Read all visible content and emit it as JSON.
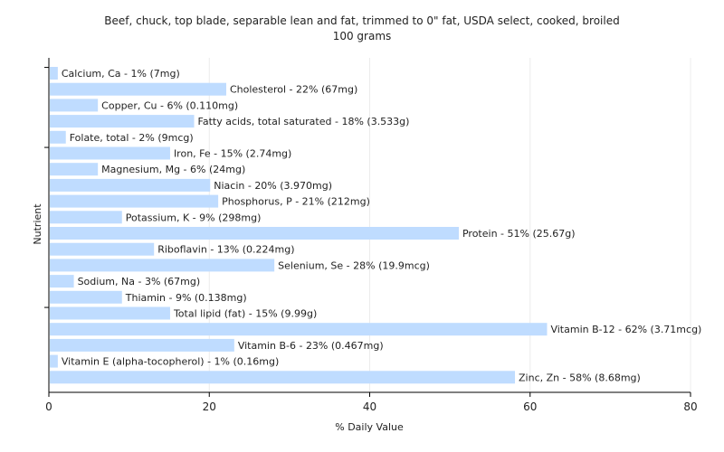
{
  "chart_data": {
    "type": "bar",
    "orientation": "horizontal",
    "title": "Beef, chuck, top blade, separable lean and fat, trimmed to 0\" fat, USDA select, cooked, broiled",
    "subtitle": "100 grams",
    "xlabel": "% Daily Value",
    "ylabel": "Nutrient",
    "xlim": [
      0,
      80
    ],
    "xticks": [
      0,
      20,
      40,
      60,
      80
    ],
    "grid": true,
    "colors": {
      "bar": "#bfdcff"
    },
    "categories": [
      "Calcium, Ca",
      "Cholesterol",
      "Copper, Cu",
      "Fatty acids, total saturated",
      "Folate, total",
      "Iron, Fe",
      "Magnesium, Mg",
      "Niacin",
      "Phosphorus, P",
      "Potassium, K",
      "Protein",
      "Riboflavin",
      "Selenium, Se",
      "Sodium, Na",
      "Thiamin",
      "Total lipid (fat)",
      "Vitamin B-12",
      "Vitamin B-6",
      "Vitamin E (alpha-tocopherol)",
      "Zinc, Zn"
    ],
    "values": [
      1,
      22,
      6,
      18,
      2,
      15,
      6,
      20,
      21,
      9,
      51,
      13,
      28,
      3,
      9,
      15,
      62,
      23,
      1,
      58
    ],
    "labels": [
      "Calcium, Ca - 1% (7mg)",
      "Cholesterol - 22% (67mg)",
      "Copper, Cu - 6% (0.110mg)",
      "Fatty acids, total saturated - 18% (3.533g)",
      "Folate, total - 2% (9mcg)",
      "Iron, Fe - 15% (2.74mg)",
      "Magnesium, Mg - 6% (24mg)",
      "Niacin - 20% (3.970mg)",
      "Phosphorus, P - 21% (212mg)",
      "Potassium, K - 9% (298mg)",
      "Protein - 51% (25.67g)",
      "Riboflavin - 13% (0.224mg)",
      "Selenium, Se - 28% (19.9mcg)",
      "Sodium, Na - 3% (67mg)",
      "Thiamin - 9% (0.138mg)",
      "Total lipid (fat) - 15% (9.99g)",
      "Vitamin B-12 - 62% (3.71mcg)",
      "Vitamin B-6 - 23% (0.467mg)",
      "Vitamin E (alpha-tocopherol) - 1% (0.16mg)",
      "Zinc, Zn - 58% (8.68mg)"
    ]
  }
}
